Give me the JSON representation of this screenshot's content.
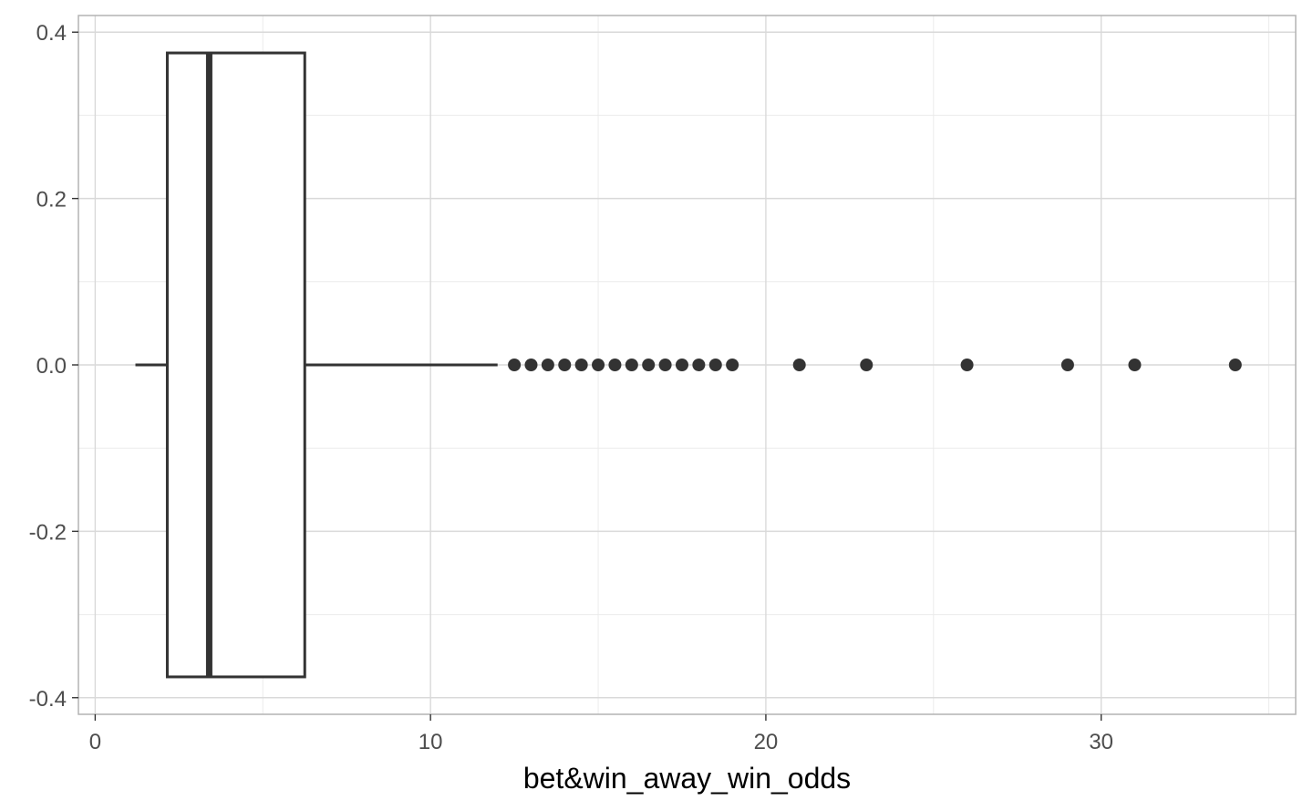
{
  "chart_data": {
    "type": "boxplot",
    "title": "",
    "xlabel": "bet&win_away_win_odds",
    "ylabel": "",
    "xlim": [
      -0.5,
      35.8
    ],
    "ylim": [
      -0.42,
      0.42
    ],
    "x_ticks": [
      0,
      10,
      20,
      30
    ],
    "x_tick_labels": [
      "0",
      "10",
      "20",
      "30"
    ],
    "y_ticks": [
      0.4,
      0.2,
      0.0,
      -0.2,
      -0.4
    ],
    "y_tick_labels": [
      "0.4",
      "0.2",
      "0.0",
      "-0.2",
      "-0.4"
    ],
    "grid": true,
    "box": {
      "whisker_low": 1.2,
      "q1": 2.15,
      "median": 3.4,
      "q3": 6.25,
      "whisker_high": 12.0,
      "y_low": -0.375,
      "y_high": 0.375,
      "y_center": 0.0
    },
    "outliers": [
      12.5,
      13.0,
      13.5,
      14.0,
      14.5,
      15.0,
      15.5,
      16.0,
      16.5,
      17.0,
      17.5,
      18.0,
      18.5,
      19.0,
      21.0,
      23.0,
      26.0,
      29.0,
      31.0,
      34.0
    ],
    "colors": {
      "box_line": "#333333",
      "grid_major": "#d9d9d9",
      "grid_minor": "#ebebeb",
      "panel_border": "#b3b3b3",
      "tick_label": "#4d4d4d"
    }
  }
}
